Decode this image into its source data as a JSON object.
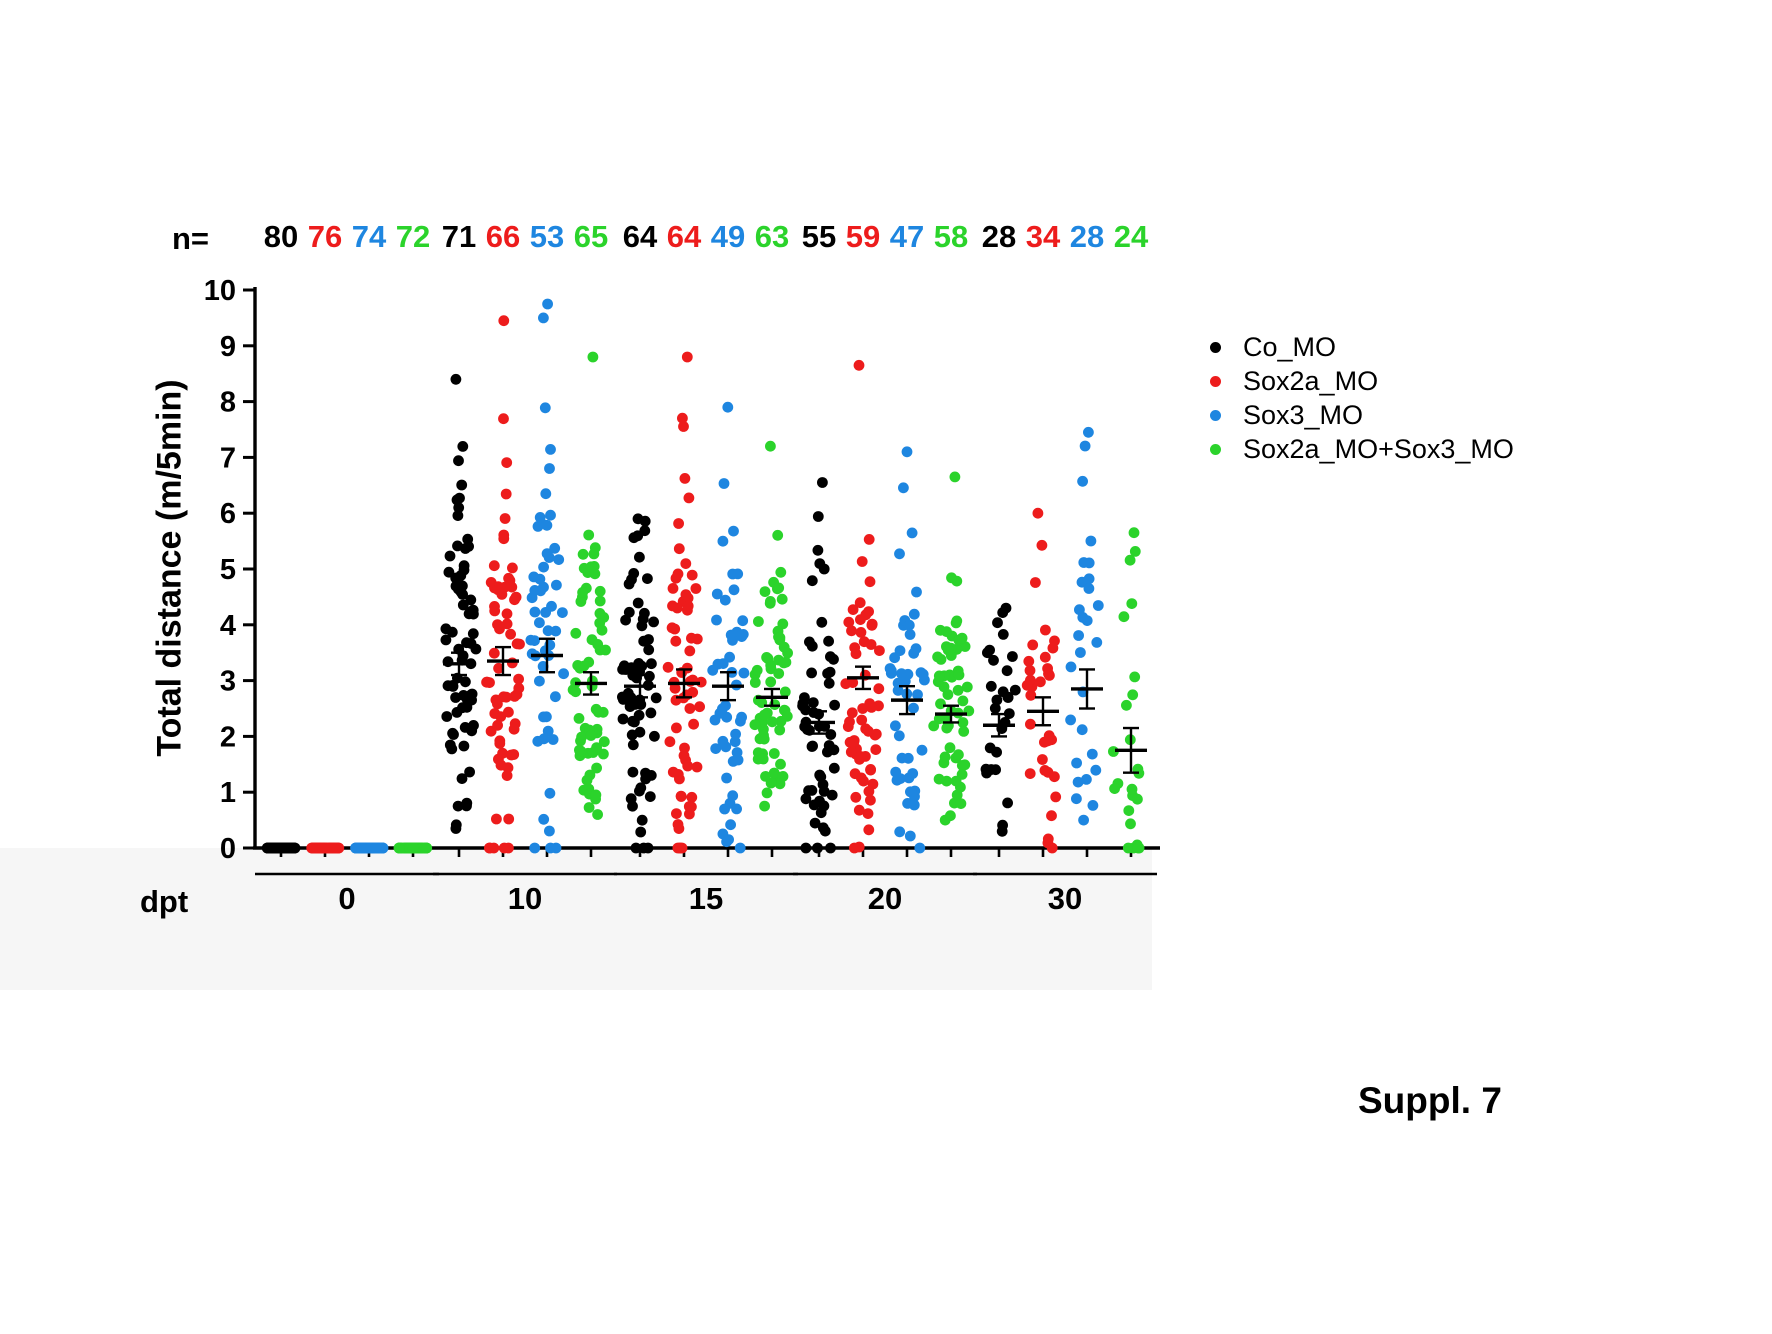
{
  "figure": {
    "n_prefix": "n=",
    "suppl_label": "Suppl. 7"
  },
  "legend": {
    "items": [
      {
        "label": "Co_MO",
        "color": "#000000"
      },
      {
        "label": "Sox2a_MO",
        "color": "#ed1c1c"
      },
      {
        "label": "Sox3_MO",
        "color": "#1e86e0"
      },
      {
        "label": "Sox2a_MO+Sox3_MO",
        "color": "#2bd32b"
      }
    ]
  },
  "chart_data": {
    "type": "scatter",
    "title": "",
    "xlabel": "dpt",
    "ylabel": "Total distance (m/5min)",
    "ylim": [
      0,
      10
    ],
    "y_ticks": [
      0,
      1,
      2,
      3,
      4,
      5,
      6,
      7,
      8,
      9,
      10
    ],
    "categories": [
      "0",
      "10",
      "15",
      "20",
      "30"
    ],
    "series_names": [
      "Co_MO",
      "Sox2a_MO",
      "Sox3_MO",
      "Sox2a_MO+Sox3_MO"
    ],
    "legend_position": "right",
    "grid": false,
    "groups": [
      {
        "dpt": "0",
        "columns": [
          {
            "series": "Co_MO",
            "n": 80,
            "mean": 0,
            "sem": 0,
            "min": 0,
            "max": 0
          },
          {
            "series": "Sox2a_MO",
            "n": 76,
            "mean": 0,
            "sem": 0,
            "min": 0,
            "max": 0
          },
          {
            "series": "Sox3_MO",
            "n": 74,
            "mean": 0,
            "sem": 0,
            "min": 0,
            "max": 0
          },
          {
            "series": "Sox2a_MO+Sox3_MO",
            "n": 72,
            "mean": 0,
            "sem": 0,
            "min": 0,
            "max": 0
          }
        ]
      },
      {
        "dpt": "10",
        "columns": [
          {
            "series": "Co_MO",
            "n": 71,
            "mean": 3.3,
            "sem": 0.2,
            "min": 0.35,
            "max": 8.4
          },
          {
            "series": "Sox2a_MO",
            "n": 66,
            "mean": 3.35,
            "sem": 0.25,
            "min": 0,
            "max": 9.45
          },
          {
            "series": "Sox3_MO",
            "n": 53,
            "mean": 3.45,
            "sem": 0.3,
            "min": 0,
            "max": 9.75
          },
          {
            "series": "Sox2a_MO+Sox3_MO",
            "n": 65,
            "mean": 2.95,
            "sem": 0.2,
            "min": 0.6,
            "max": 8.8
          }
        ]
      },
      {
        "dpt": "15",
        "columns": [
          {
            "series": "Co_MO",
            "n": 64,
            "mean": 2.9,
            "sem": 0.2,
            "min": 0,
            "max": 5.9
          },
          {
            "series": "Sox2a_MO",
            "n": 64,
            "mean": 2.95,
            "sem": 0.25,
            "min": 0,
            "max": 8.8
          },
          {
            "series": "Sox3_MO",
            "n": 49,
            "mean": 2.9,
            "sem": 0.25,
            "min": 0,
            "max": 7.9
          },
          {
            "series": "Sox2a_MO+Sox3_MO",
            "n": 63,
            "mean": 2.7,
            "sem": 0.15,
            "min": 0.75,
            "max": 7.2
          }
        ]
      },
      {
        "dpt": "20",
        "columns": [
          {
            "series": "Co_MO",
            "n": 55,
            "mean": 2.25,
            "sem": 0.2,
            "min": 0,
            "max": 6.55
          },
          {
            "series": "Sox2a_MO",
            "n": 59,
            "mean": 3.05,
            "sem": 0.2,
            "min": 0,
            "max": 8.65
          },
          {
            "series": "Sox3_MO",
            "n": 47,
            "mean": 2.65,
            "sem": 0.25,
            "min": 0,
            "max": 7.1
          },
          {
            "series": "Sox2a_MO+Sox3_MO",
            "n": 58,
            "mean": 2.4,
            "sem": 0.15,
            "min": 0.5,
            "max": 6.65
          }
        ]
      },
      {
        "dpt": "30",
        "columns": [
          {
            "series": "Co_MO",
            "n": 28,
            "mean": 2.2,
            "sem": 0.2,
            "min": 0.3,
            "max": 4.3
          },
          {
            "series": "Sox2a_MO",
            "n": 34,
            "mean": 2.45,
            "sem": 0.25,
            "min": 0,
            "max": 6.0
          },
          {
            "series": "Sox3_MO",
            "n": 28,
            "mean": 2.85,
            "sem": 0.35,
            "min": 0.5,
            "max": 7.45
          },
          {
            "series": "Sox2a_MO+Sox3_MO",
            "n": 24,
            "mean": 1.75,
            "sem": 0.4,
            "min": 0,
            "max": 5.65
          }
        ]
      }
    ]
  }
}
